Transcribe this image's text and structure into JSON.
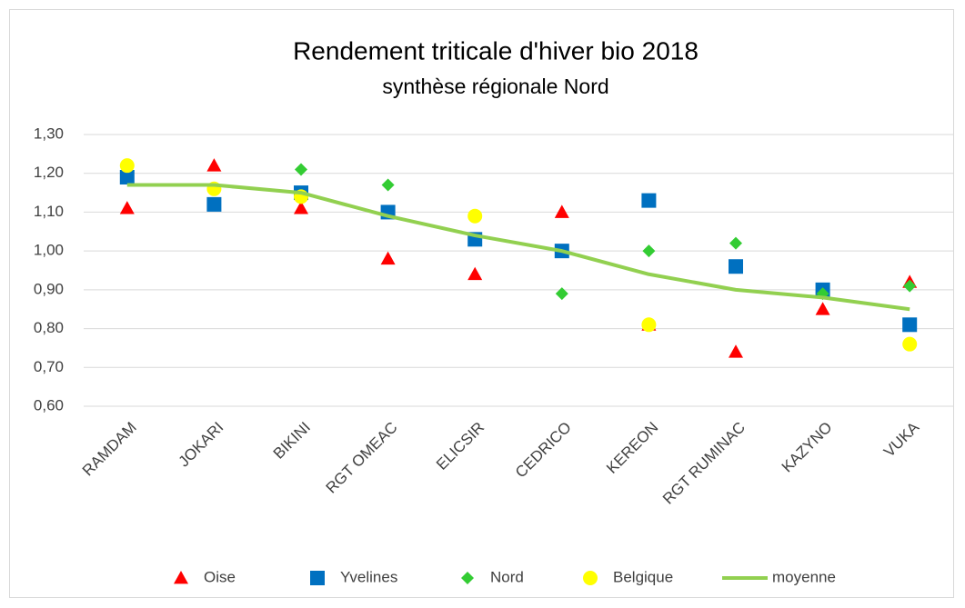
{
  "chart_data": {
    "type": "line",
    "title": "Rendement triticale d'hiver bio 2018",
    "subtitle": "synthèse régionale Nord",
    "categories": [
      "RAMDAM",
      "JOKARI",
      "BIKINI",
      "RGT OMEAC",
      "ELICSIR",
      "CEDRICO",
      "KEREON",
      "RGT RUMINAC",
      "KAZYNO",
      "VUKA"
    ],
    "series": [
      {
        "name": "Oise",
        "color": "#ff0000",
        "marker": "triangle",
        "values": [
          1.11,
          1.22,
          1.11,
          0.98,
          0.94,
          1.1,
          0.81,
          0.74,
          0.85,
          0.92
        ]
      },
      {
        "name": "Yvelines",
        "color": "#0070c0",
        "marker": "square",
        "values": [
          1.19,
          1.12,
          1.15,
          1.1,
          1.03,
          1.0,
          1.13,
          0.96,
          0.9,
          0.81
        ]
      },
      {
        "name": "Nord",
        "color": "#33cc33",
        "marker": "diamond",
        "values": [
          null,
          null,
          1.21,
          1.17,
          null,
          0.89,
          1.0,
          1.02,
          0.89,
          0.91
        ]
      },
      {
        "name": "Belgique",
        "color": "#ffff00",
        "marker": "circle",
        "values": [
          1.22,
          1.16,
          1.14,
          null,
          1.09,
          null,
          0.81,
          null,
          null,
          0.76
        ]
      },
      {
        "name": "moyenne",
        "color": "#92d050",
        "marker": "line",
        "values": [
          1.17,
          1.17,
          1.15,
          1.09,
          1.04,
          1.0,
          0.94,
          0.9,
          0.88,
          0.85
        ]
      }
    ],
    "ylim": [
      0.6,
      1.3
    ],
    "yticks": [
      {
        "value": 0.6,
        "label": "0,60"
      },
      {
        "value": 0.7,
        "label": "0,70"
      },
      {
        "value": 0.8,
        "label": "0,80"
      },
      {
        "value": 0.9,
        "label": "0,90"
      },
      {
        "value": 1.0,
        "label": "1,00"
      },
      {
        "value": 1.1,
        "label": "1,10"
      },
      {
        "value": 1.2,
        "label": "1,20"
      },
      {
        "value": 1.3,
        "label": "1,30"
      }
    ],
    "grid": true,
    "legend": "bottom"
  }
}
